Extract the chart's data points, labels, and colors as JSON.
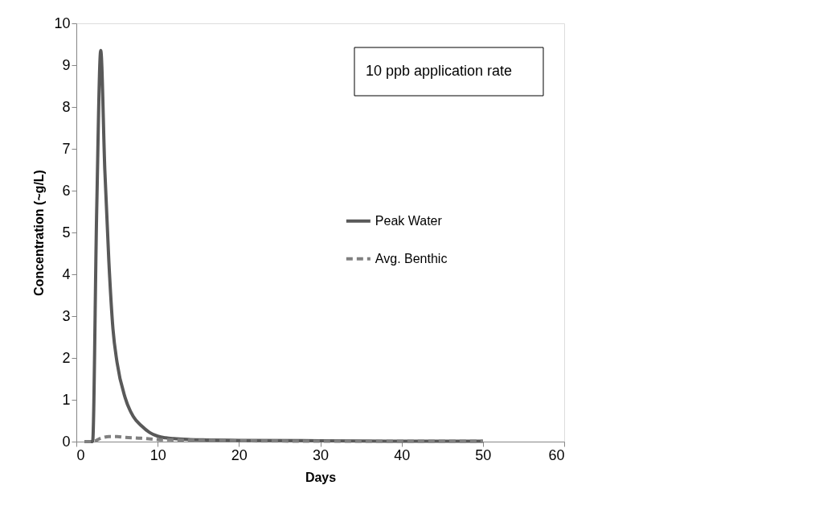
{
  "chart_data": {
    "type": "line",
    "xlabel": "Days",
    "ylabel": "Concentration (~g/L)",
    "annotations": [
      "10 ppb application rate"
    ],
    "xlim": [
      0,
      60
    ],
    "xticks": [
      0,
      10,
      20,
      30,
      40,
      50,
      60
    ],
    "ylim": [
      0,
      10
    ],
    "yticks": [
      0,
      1,
      2,
      3,
      4,
      5,
      6,
      7,
      8,
      9,
      10
    ],
    "grid": false,
    "legend": "right",
    "marker": "none",
    "series": [
      {
        "name": "Peak Water",
        "color": "#595959",
        "line_style": "solid",
        "x": [
          1,
          2,
          2.5,
          3,
          3.5,
          4,
          4.5,
          5,
          6,
          7,
          8,
          9,
          10,
          11,
          12,
          14,
          16,
          20,
          30,
          40,
          50
        ],
        "values": [
          0,
          0,
          5.5,
          9.35,
          6.5,
          4.3,
          2.7,
          1.9,
          1.05,
          0.6,
          0.38,
          0.22,
          0.13,
          0.09,
          0.07,
          0.05,
          0.04,
          0.03,
          0.02,
          0.01,
          0.01
        ]
      },
      {
        "name": "Avg. Benthic",
        "color": "#808080",
        "line_style": "dashed",
        "x": [
          1,
          2,
          3,
          4,
          5,
          6,
          8,
          10,
          12,
          15,
          20,
          30,
          40,
          50
        ],
        "values": [
          0,
          0,
          0.08,
          0.12,
          0.12,
          0.1,
          0.08,
          0.05,
          0.04,
          0.03,
          0.02,
          0.01,
          0.01,
          0.01
        ]
      }
    ]
  }
}
